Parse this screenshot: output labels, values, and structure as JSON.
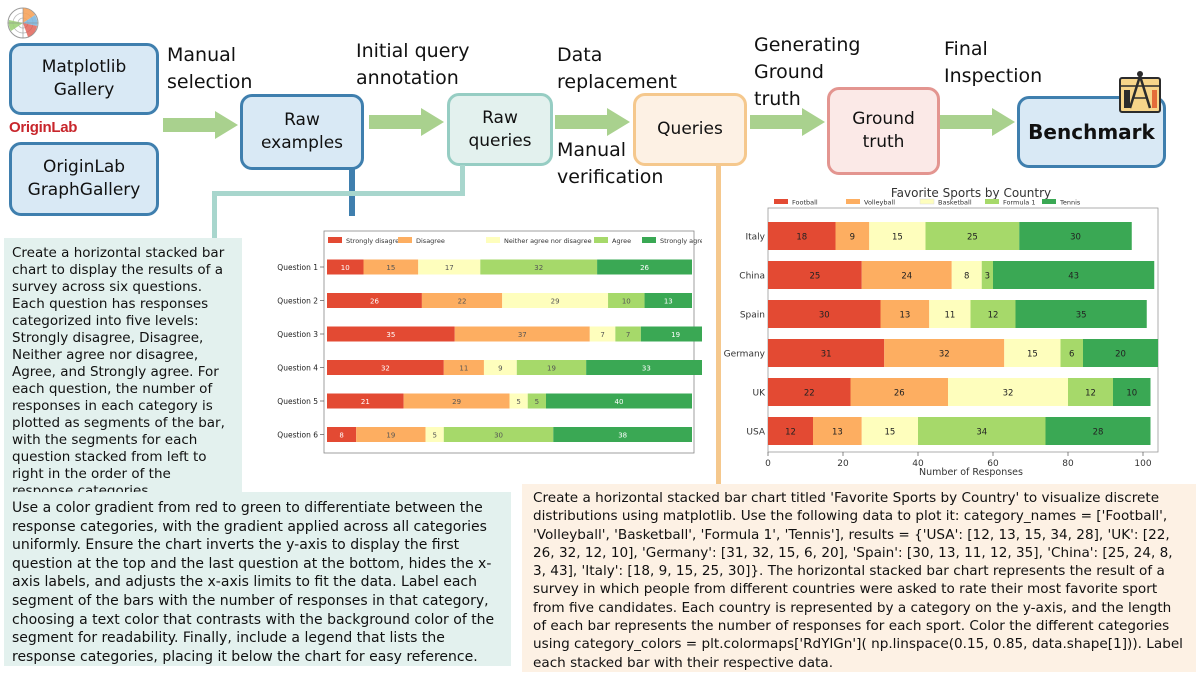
{
  "pipeline": {
    "sources": [
      "Matplotlib Gallery",
      "OriginLab GraphGallery"
    ],
    "originlab_logo": "OriginLab",
    "steps": [
      {
        "label": "Manual selection"
      },
      {
        "label": "Initial query annotation"
      },
      {
        "label": "Data replacement",
        "below": "Manual verification"
      },
      {
        "label": "Generating Ground truth"
      },
      {
        "label": "Final Inspection"
      }
    ],
    "nodes": {
      "raw_examples": "Raw examples",
      "raw_queries": "Raw queries",
      "queries": "Queries",
      "ground_truth": "Ground truth",
      "benchmark": "Benchmark"
    }
  },
  "raw_query_text": {
    "part1": "Create a horizontal stacked bar chart to display the results of a survey across six questions. Each question has responses categorized into five levels: Strongly disagree, Disagree, Neither agree nor disagree, Agree, and Strongly agree. For each question, the number of responses in each category is plotted as segments of the bar, with the segments for each question stacked from left to right in the order of the response categories.",
    "part2": "Use a color gradient from red to green to differentiate between the response categories, with the gradient applied across all categories uniformly. Ensure the chart inverts the y-axis to display the first question at the top and the last question at the bottom, hides the x-axis labels, and adjusts the x-axis limits to fit the data. Label each segment of the bars with the number of responses in that category, choosing a text color that contrasts with the background color of the segment for readability. Finally, include a legend that lists the response categories, placing it below the chart for easy reference."
  },
  "query_text": "Create a horizontal stacked bar chart titled 'Favorite Sports by Country' to visualize discrete distributions using matplotlib. Use the following data to plot it: category_names = ['Football', 'Volleyball', 'Basketball', 'Formula 1', 'Tennis'], results = {'USA': [12, 13, 15, 34, 28], 'UK': [22, 26, 32, 12, 10], 'Germany': [31, 32, 15, 6, 20], 'Spain': [30, 13, 11, 12, 35], 'China': [25, 24, 8, 3, 43], 'Italy': [18, 9, 15, 25, 30]}.    The horizontal stacked bar chart represents the result of a survey in which people from different countries were asked to rate their most favorite sport from five candidates. Each country is represented by a category on the y-axis, and the length of each bar represents the number of responses for each sport. Color the different categories using category_colors = plt.colormaps['RdYlGn'](        np.linspace(0.15, 0.85, data.shape[1])). Label each stacked bar with their respective data.",
  "colors": {
    "c1": "#e34a33",
    "c2": "#fdae61",
    "c3": "#fefebd",
    "c4": "#a6d96a",
    "c5": "#3aa854"
  },
  "chart_data": [
    {
      "type": "bar",
      "orientation": "horizontal-stacked",
      "title": "",
      "legend": [
        "Strongly disagree",
        "Disagree",
        "Neither agree nor disagree",
        "Agree",
        "Strongly agree"
      ],
      "legend_position": "top",
      "categories": [
        "Question 1",
        "Question 2",
        "Question 3",
        "Question 4",
        "Question 5",
        "Question 6"
      ],
      "series": [
        {
          "name": "Strongly disagree",
          "values": [
            10,
            26,
            35,
            32,
            21,
            8
          ]
        },
        {
          "name": "Disagree",
          "values": [
            15,
            22,
            37,
            11,
            29,
            19
          ]
        },
        {
          "name": "Neither agree nor disagree",
          "values": [
            17,
            29,
            7,
            9,
            5,
            5
          ]
        },
        {
          "name": "Agree",
          "values": [
            32,
            10,
            7,
            19,
            5,
            30
          ]
        },
        {
          "name": "Strongly agree",
          "values": [
            26,
            13,
            19,
            33,
            40,
            38
          ]
        }
      ],
      "xlim": [
        0,
        100
      ]
    },
    {
      "type": "bar",
      "orientation": "horizontal-stacked",
      "title": "Favorite Sports by Country",
      "xlabel": "Number of Responses",
      "legend": [
        "Football",
        "Volleyball",
        "Basketball",
        "Formula 1",
        "Tennis"
      ],
      "legend_position": "top",
      "categories": [
        "Italy",
        "China",
        "Spain",
        "Germany",
        "UK",
        "USA"
      ],
      "series": [
        {
          "name": "Football",
          "values": [
            18,
            25,
            30,
            31,
            22,
            12
          ]
        },
        {
          "name": "Volleyball",
          "values": [
            9,
            24,
            13,
            32,
            26,
            13
          ]
        },
        {
          "name": "Basketball",
          "values": [
            15,
            8,
            11,
            15,
            32,
            15
          ]
        },
        {
          "name": "Formula 1",
          "values": [
            25,
            3,
            12,
            6,
            12,
            34
          ]
        },
        {
          "name": "Tennis",
          "values": [
            30,
            43,
            35,
            20,
            10,
            28
          ]
        }
      ],
      "xticks": [
        "0",
        "20",
        "40",
        "60",
        "80",
        "100"
      ],
      "xlim": [
        0,
        104
      ]
    }
  ]
}
